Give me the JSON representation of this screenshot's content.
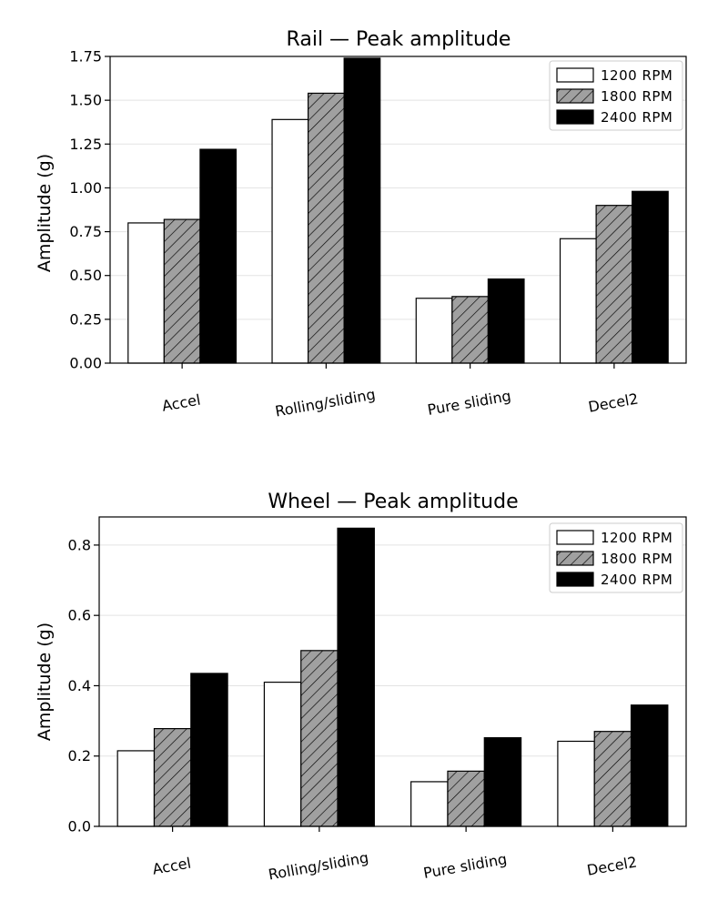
{
  "chart_data": [
    {
      "type": "bar",
      "title": "Rail — Peak amplitude",
      "xlabel": "",
      "ylabel": "Amplitude (g)",
      "ylim": [
        0,
        1.75
      ],
      "yticks": [
        0.0,
        0.25,
        0.5,
        0.75,
        1.0,
        1.25,
        1.5,
        1.75
      ],
      "ytick_labels": [
        "0.00",
        "0.25",
        "0.50",
        "0.75",
        "1.00",
        "1.25",
        "1.50",
        "1.75"
      ],
      "categories": [
        "Accel",
        "Rolling/sliding",
        "Pure sliding",
        "Decel2"
      ],
      "grid": "horizontal",
      "legend_position": "top-right",
      "series": [
        {
          "name": "1200 RPM",
          "values": [
            0.8,
            1.39,
            0.37,
            0.71
          ]
        },
        {
          "name": "1800 RPM",
          "values": [
            0.82,
            1.54,
            0.38,
            0.9
          ]
        },
        {
          "name": "2400 RPM",
          "values": [
            1.22,
            1.74,
            0.48,
            0.98
          ]
        }
      ]
    },
    {
      "type": "bar",
      "title": "Wheel — Peak amplitude",
      "xlabel": "",
      "ylabel": "Amplitude (g)",
      "ylim": [
        0,
        0.88
      ],
      "yticks": [
        0.0,
        0.2,
        0.4,
        0.6,
        0.8
      ],
      "ytick_labels": [
        "0.0",
        "0.2",
        "0.4",
        "0.6",
        "0.8"
      ],
      "categories": [
        "Accel",
        "Rolling/sliding",
        "Pure sliding",
        "Decel2"
      ],
      "grid": "horizontal",
      "legend_position": "top-right",
      "series": [
        {
          "name": "1200 RPM",
          "values": [
            0.215,
            0.41,
            0.127,
            0.242
          ]
        },
        {
          "name": "1800 RPM",
          "values": [
            0.278,
            0.5,
            0.157,
            0.27
          ]
        },
        {
          "name": "2400 RPM",
          "values": [
            0.435,
            0.848,
            0.252,
            0.345
          ]
        }
      ]
    }
  ],
  "series_styles": [
    {
      "fill": "#ffffff",
      "hatch": false
    },
    {
      "fill": "#a0a0a0",
      "hatch": true
    },
    {
      "fill": "#000000",
      "hatch": false
    }
  ]
}
